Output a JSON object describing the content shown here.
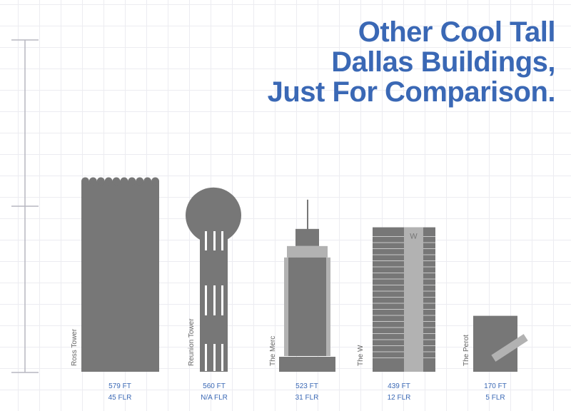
{
  "title": [
    "Other Cool Tall",
    "Dallas Buildings,",
    "Just For Comparison."
  ],
  "colors": {
    "title": "#3a68b5",
    "building": "#777777",
    "building_light": "#b2b2b2",
    "stats": "#3a68b5",
    "scale": "#b7b7c0",
    "label": "#666666"
  },
  "chart_data": {
    "type": "bar",
    "categories": [
      "Ross Tower",
      "Reunion Tower",
      "The Merc",
      "The W",
      "The Perot"
    ],
    "series": [
      {
        "values": [
          579,
          560,
          523,
          439,
          170
        ]
      }
    ],
    "ylim": [
      0,
      579
    ],
    "height_labels": [
      "579 FT",
      "560 FT",
      "523 FT",
      "439 FT",
      "170 FT"
    ],
    "floor_labels": [
      "45 FLR",
      "N/A FLR",
      "31 FLR",
      "12 FLR",
      "5 FLR"
    ],
    "icons": [
      "ross-tower-icon",
      "reunion-tower-icon",
      "the-merc-icon",
      "the-w-icon",
      "the-perot-icon"
    ],
    "w_sign": "W"
  }
}
